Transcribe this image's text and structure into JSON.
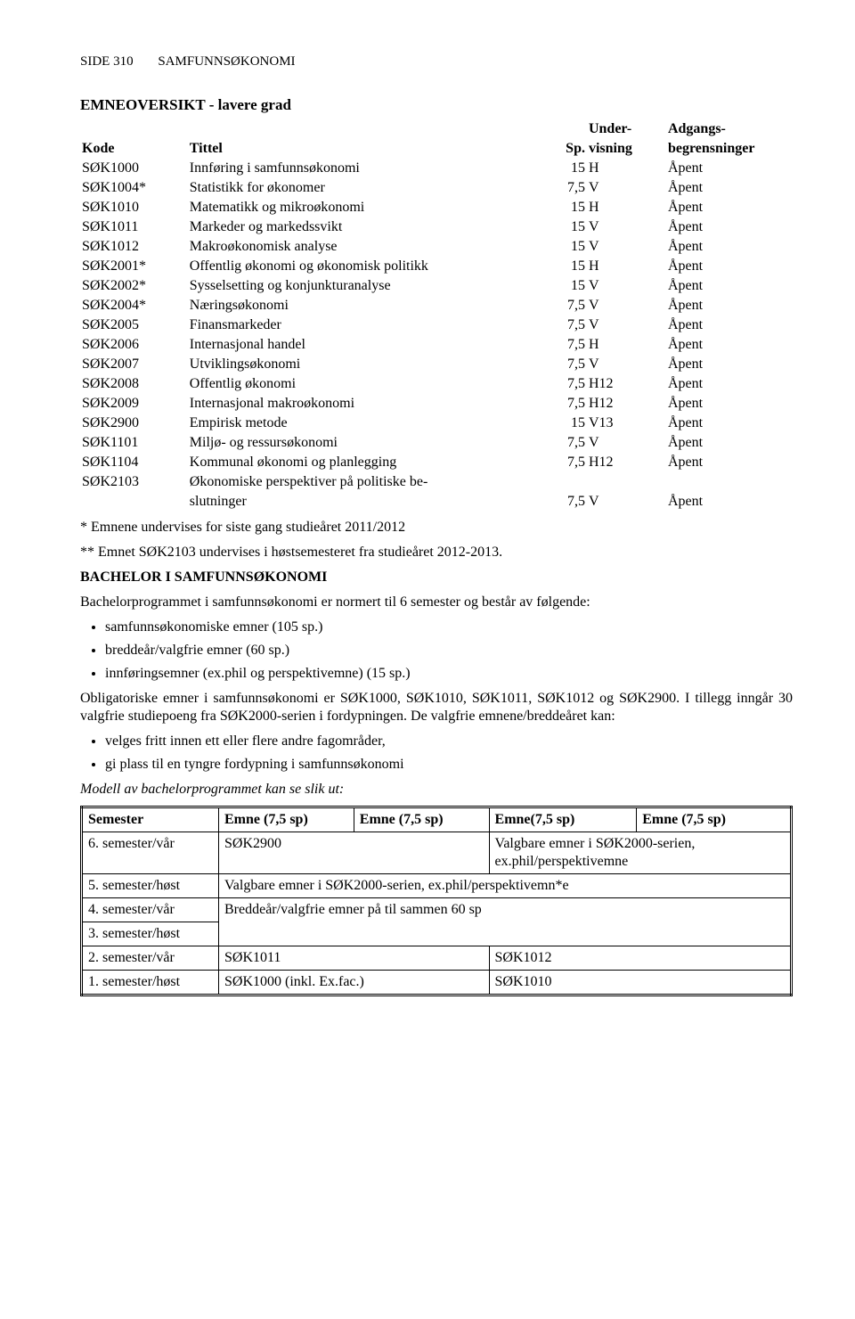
{
  "header": {
    "side": "SIDE 310",
    "subject": "SAMFUNNSØKONOMI"
  },
  "overview": {
    "title": "EMNEOVERSIKT - lavere grad",
    "columns": {
      "kode": "Kode",
      "tittel": "Tittel",
      "sp": "Sp.",
      "uv1": "Under-",
      "uv2": "visning",
      "ab1": "Adgangs-",
      "ab2": "begrensninger"
    },
    "rows": [
      {
        "kode": "SØK1000",
        "tittel": "Innføring i samfunnsøkonomi",
        "sp": "15",
        "uv": "H",
        "ab": "Åpent"
      },
      {
        "kode": "SØK1004*",
        "tittel": "Statistikk for økonomer",
        "sp": "7,5",
        "uv": "V",
        "ab": "Åpent"
      },
      {
        "kode": "SØK1010",
        "tittel": "Matematikk og mikroøkonomi",
        "sp": "15",
        "uv": "H",
        "ab": "Åpent"
      },
      {
        "kode": "SØK1011",
        "tittel": "Markeder og markedssvikt",
        "sp": "15",
        "uv": "V",
        "ab": "Åpent"
      },
      {
        "kode": "SØK1012",
        "tittel": "Makroøkonomisk analyse",
        "sp": "15",
        "uv": "V",
        "ab": "Åpent"
      },
      {
        "kode": "SØK2001*",
        "tittel": "Offentlig økonomi og økonomisk politikk",
        "sp": "15",
        "uv": "H",
        "ab": "Åpent"
      },
      {
        "kode": "SØK2002*",
        "tittel": "Sysselsetting og konjunkturanalyse",
        "sp": "15",
        "uv": "V",
        "ab": "Åpent"
      },
      {
        "kode": "SØK2004*",
        "tittel": "Næringsøkonomi",
        "sp": "7,5",
        "uv": "V",
        "ab": "Åpent"
      },
      {
        "kode": "SØK2005",
        "tittel": "Finansmarkeder",
        "sp": "7,5",
        "uv": "V",
        "ab": "Åpent"
      },
      {
        "kode": "SØK2006",
        "tittel": "Internasjonal handel",
        "sp": "7,5",
        "uv": "H",
        "ab": "Åpent"
      },
      {
        "kode": "SØK2007",
        "tittel": "Utviklingsøkonomi",
        "sp": "7,5",
        "uv": "V",
        "ab": "Åpent"
      },
      {
        "kode": "SØK2008",
        "tittel": "Offentlig økonomi",
        "sp": "7,5",
        "uv": "H12",
        "ab": "Åpent"
      },
      {
        "kode": "SØK2009",
        "tittel": "Internasjonal makroøkonomi",
        "sp": "7,5",
        "uv": "H12",
        "ab": "Åpent"
      },
      {
        "kode": "SØK2900",
        "tittel": "Empirisk metode",
        "sp": "15",
        "uv": "V13",
        "ab": "Åpent"
      },
      {
        "kode": "SØK1101",
        "tittel": "Miljø- og ressursøkonomi",
        "sp": "7,5",
        "uv": "V",
        "ab": "Åpent"
      },
      {
        "kode": "SØK1104",
        "tittel": "Kommunal økonomi og planlegging",
        "sp": "7,5",
        "uv": "H12",
        "ab": "Åpent"
      },
      {
        "kode": "SØK2103",
        "tittel": "Økonomiske perspektiver på politiske be-",
        "sp": "",
        "uv": "",
        "ab": ""
      },
      {
        "kode": "",
        "tittel": "slutninger",
        "sp": "7,5",
        "uv": "V",
        "ab": "Åpent"
      }
    ]
  },
  "notes": {
    "star1": "* Emnene undervises for siste gang studieåret 2011/2012",
    "star2": "** Emnet SØK2103 undervises i høstsemesteret fra studieåret 2012-2013."
  },
  "bachelor": {
    "title": "BACHELOR I SAMFUNNSØKONOMI",
    "intro": "Bachelorprogrammet i samfunnsøkonomi er normert til 6 semester og består av følgende:",
    "bullets1": [
      "samfunnsøkonomiske emner (105 sp.)",
      "breddeår/valgfrie emner (60 sp.)",
      "innføringsemner (ex.phil og perspektivemne) (15 sp.)"
    ],
    "oblig": "Obligatoriske emner i samfunnsøkonomi er SØK1000, SØK1010, SØK1011, SØK1012 og SØK2900. I tillegg inngår 30 valgfrie studiepoeng fra SØK2000-serien i fordypningen. De valgfrie emnene/breddeåret kan:",
    "bullets2": [
      "velges fritt innen ett eller flere andre fagområder,",
      "gi plass til en tyngre fordypning i samfunnsøkonomi"
    ],
    "model_caption": "Modell av bachelorprogrammet kan se slik ut:"
  },
  "semtable": {
    "headers": [
      "Semester",
      "Emne (7,5 sp)",
      "Emne (7,5 sp)",
      "Emne(7,5 sp)",
      "Emne (7,5 sp)"
    ],
    "row6_label": "6. semester/vår",
    "row6_c1": "SØK2900",
    "row6_c2a": "Valgbare emner i SØK2000-serien,",
    "row6_c2b": "ex.phil/perspektivemne",
    "row5_label": "5. semester/høst",
    "row5_span": "Valgbare emner i SØK2000-serien, ex.phil/perspektivemn*e",
    "row4_label": "4. semester/vår",
    "row3_label": "3. semester/høst",
    "row43_span": "Breddeår/valgfrie emner på til sammen 60 sp",
    "row2_label": "2. semester/vår",
    "row2_c1": "SØK1011",
    "row2_c2": "SØK1012",
    "row1_label": "1. semester/høst",
    "row1_c1": "SØK1000 (inkl. Ex.fac.)",
    "row1_c2": "SØK1010"
  }
}
